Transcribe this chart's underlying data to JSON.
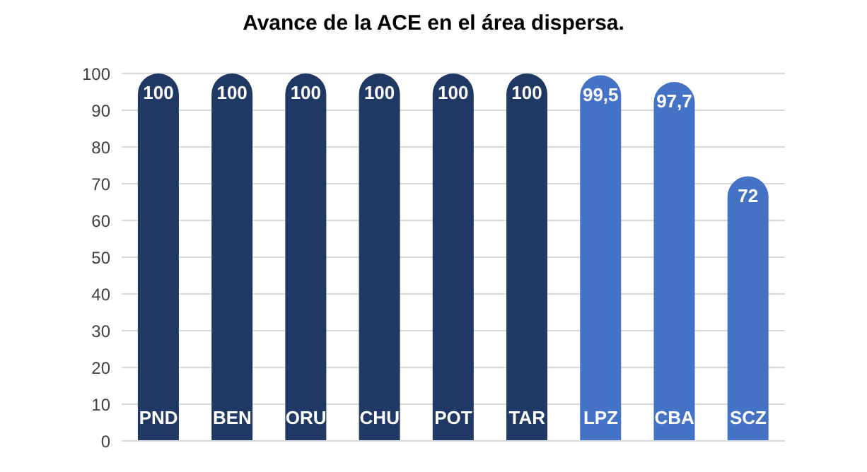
{
  "chart_data": {
    "type": "bar",
    "title": "Avance de la ACE en el área dispersa.",
    "categories": [
      "PND",
      "BEN",
      "ORU",
      "CHU",
      "POT",
      "TAR",
      "LPZ",
      "CBA",
      "SCZ"
    ],
    "values": [
      100,
      100,
      100,
      100,
      100,
      100,
      99.5,
      97.7,
      72
    ],
    "value_labels": [
      "100",
      "100",
      "100",
      "100",
      "100",
      "100",
      "99,5",
      "97,7",
      "72"
    ],
    "colors": [
      "#1f3864",
      "#1f3864",
      "#1f3864",
      "#1f3864",
      "#1f3864",
      "#1f3864",
      "#4472c4",
      "#4472c4",
      "#4472c4"
    ],
    "ylim": [
      0,
      100
    ],
    "yticks": [
      0,
      10,
      20,
      30,
      40,
      50,
      60,
      70,
      80,
      90,
      100
    ],
    "grid": "y"
  }
}
